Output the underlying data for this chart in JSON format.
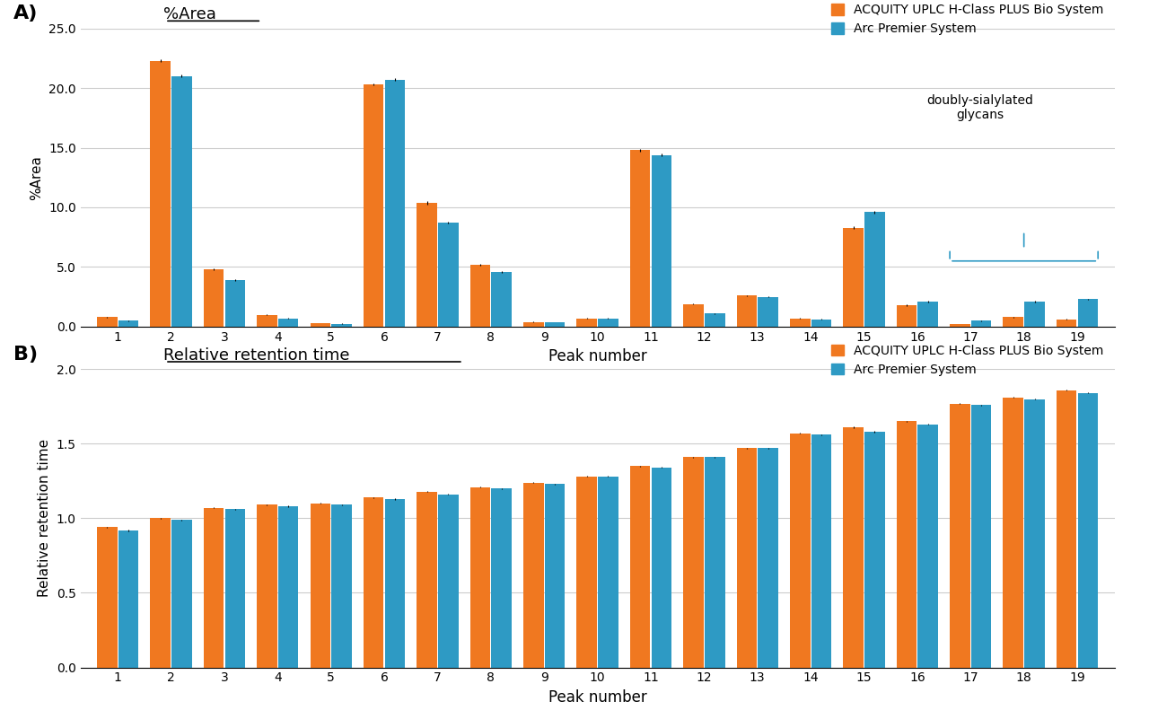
{
  "peaks": [
    1,
    2,
    3,
    4,
    5,
    6,
    7,
    8,
    9,
    10,
    11,
    12,
    13,
    14,
    15,
    16,
    17,
    18,
    19
  ],
  "area_orange": [
    0.8,
    22.3,
    4.8,
    1.0,
    0.3,
    20.3,
    10.4,
    5.2,
    0.4,
    0.7,
    14.8,
    1.9,
    2.6,
    0.7,
    8.3,
    1.8,
    0.2,
    0.8,
    0.6
  ],
  "area_blue": [
    0.5,
    21.0,
    3.9,
    0.7,
    0.25,
    20.7,
    8.7,
    4.6,
    0.35,
    0.7,
    14.4,
    1.1,
    2.5,
    0.6,
    9.6,
    2.1,
    0.5,
    2.1,
    2.3
  ],
  "area_orange_err": [
    0.05,
    0.1,
    0.1,
    0.05,
    0.02,
    0.1,
    0.15,
    0.08,
    0.02,
    0.03,
    0.1,
    0.05,
    0.05,
    0.03,
    0.1,
    0.05,
    0.02,
    0.04,
    0.03
  ],
  "area_blue_err": [
    0.05,
    0.1,
    0.05,
    0.04,
    0.02,
    0.1,
    0.08,
    0.06,
    0.02,
    0.03,
    0.1,
    0.05,
    0.04,
    0.03,
    0.1,
    0.05,
    0.03,
    0.05,
    0.04
  ],
  "rrt_orange": [
    0.94,
    1.0,
    1.07,
    1.09,
    1.1,
    1.14,
    1.18,
    1.21,
    1.24,
    1.28,
    1.35,
    1.41,
    1.47,
    1.57,
    1.61,
    1.65,
    1.77,
    1.81,
    1.86
  ],
  "rrt_blue": [
    0.92,
    0.99,
    1.06,
    1.08,
    1.09,
    1.13,
    1.16,
    1.2,
    1.23,
    1.28,
    1.34,
    1.41,
    1.47,
    1.56,
    1.58,
    1.63,
    1.76,
    1.8,
    1.84
  ],
  "rrt_orange_err": [
    0.005,
    0.003,
    0.004,
    0.004,
    0.003,
    0.004,
    0.003,
    0.003,
    0.003,
    0.003,
    0.003,
    0.003,
    0.003,
    0.004,
    0.004,
    0.003,
    0.003,
    0.003,
    0.003
  ],
  "rrt_blue_err": [
    0.005,
    0.003,
    0.004,
    0.004,
    0.003,
    0.004,
    0.003,
    0.003,
    0.003,
    0.003,
    0.003,
    0.003,
    0.003,
    0.004,
    0.004,
    0.003,
    0.003,
    0.003,
    0.003
  ],
  "orange_color": "#F07820",
  "blue_color": "#2E9AC4",
  "legend_orange": "ACQUITY UPLC H-Class PLUS Bio System",
  "legend_blue": "Arc Premier System",
  "title_A": "%Area",
  "title_B": "Relative retention time",
  "xlabel": "Peak number",
  "ylabel_A": "%Area",
  "ylabel_B": "Relative retention time",
  "ylim_A": [
    0,
    25.0
  ],
  "ylim_B": [
    0.0,
    2.0
  ],
  "yticks_A": [
    0.0,
    5.0,
    10.0,
    15.0,
    20.0,
    25.0
  ],
  "yticks_B": [
    0.0,
    0.5,
    1.0,
    1.5,
    2.0
  ],
  "bracket_peaks": [
    17,
    18,
    19
  ],
  "bracket_label": "doubly-sialylated\nglycans",
  "background_color": "#ffffff",
  "grid_color": "#cccccc"
}
